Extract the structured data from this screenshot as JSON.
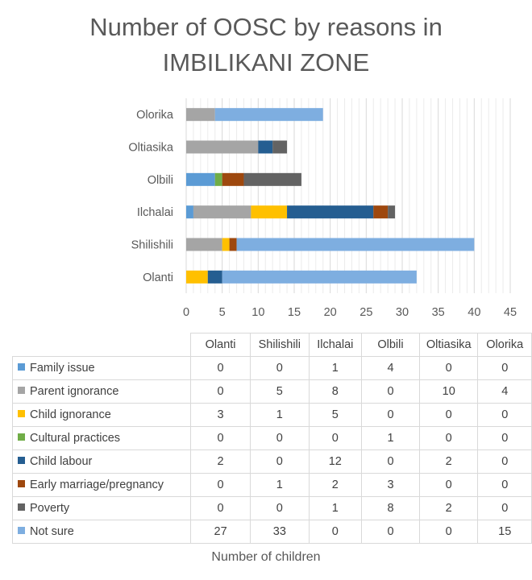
{
  "chart_data": {
    "type": "bar",
    "orientation": "horizontal",
    "stacked": true,
    "title_line1": "Number of OOSC by reasons in",
    "title_line2": "IMBILIKANI ZONE",
    "xlabel": "Number of children",
    "ylabel": "",
    "xlim": [
      0,
      45
    ],
    "xticks": [
      "0",
      "5",
      "10",
      "15",
      "20",
      "25",
      "30",
      "35",
      "40",
      "45"
    ],
    "grid": true,
    "legend": "table-below",
    "categories": [
      "Olanti",
      "Shilishili",
      "Ilchalai",
      "Olbili",
      "Oltiasika",
      "Olorika"
    ],
    "series": [
      {
        "name": "Family issue",
        "color": "#5b9bd5",
        "values": [
          0,
          0,
          1,
          4,
          0,
          0
        ]
      },
      {
        "name": "Parent ignorance",
        "color": "#a5a5a5",
        "values": [
          0,
          5,
          8,
          0,
          10,
          4
        ]
      },
      {
        "name": "Child ignorance",
        "color": "#ffc000",
        "values": [
          3,
          1,
          5,
          0,
          0,
          0
        ]
      },
      {
        "name": "Cultural practices",
        "color": "#70ad47",
        "values": [
          0,
          0,
          0,
          1,
          0,
          0
        ]
      },
      {
        "name": "Child labour",
        "color": "#255e91",
        "values": [
          2,
          0,
          12,
          0,
          2,
          0
        ]
      },
      {
        "name": "Early marriage/pregnancy",
        "color": "#9e480e",
        "values": [
          0,
          1,
          2,
          3,
          0,
          0
        ]
      },
      {
        "name": "Poverty",
        "color": "#636363",
        "values": [
          0,
          0,
          1,
          8,
          2,
          0
        ]
      },
      {
        "name": "Not sure",
        "color": "#7eaee0",
        "values": [
          27,
          33,
          0,
          0,
          0,
          15
        ]
      }
    ]
  }
}
